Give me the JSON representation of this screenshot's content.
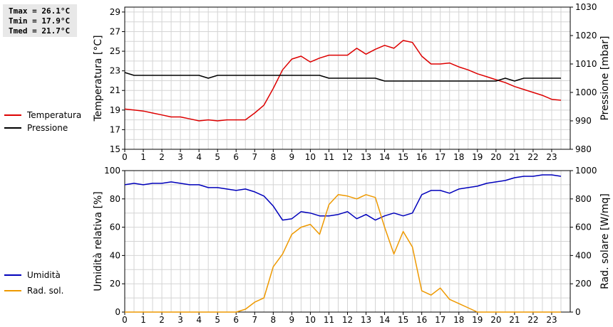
{
  "stats": {
    "tmax": "Tmax = 26.1°C",
    "tmin": "Tmin = 17.9°C",
    "tmed": "Tmed = 21.7°C"
  },
  "chart_data": [
    {
      "type": "line",
      "xlabel": "",
      "xlim": [
        0,
        24
      ],
      "xticks": [
        "0",
        "1",
        "2",
        "3",
        "4",
        "5",
        "6",
        "7",
        "8",
        "9",
        "10",
        "11",
        "12",
        "13",
        "14",
        "15",
        "16",
        "17",
        "18",
        "19",
        "20",
        "21",
        "22",
        "23"
      ],
      "ylabel": "Temperatura [°C]",
      "ylim": [
        15,
        29.5
      ],
      "yticks": [
        15,
        17,
        19,
        21,
        23,
        25,
        27,
        29
      ],
      "y2label": "Pressione [mbar]",
      "y2lim": [
        980,
        1030
      ],
      "y2ticks": [
        980,
        990,
        1000,
        1010,
        1020,
        1030
      ],
      "grid": true,
      "legend_position": "left",
      "x": [
        0,
        0.5,
        1,
        1.5,
        2,
        2.5,
        3,
        3.5,
        4,
        4.5,
        5,
        5.5,
        6,
        6.5,
        7,
        7.5,
        8,
        8.5,
        9,
        9.5,
        10,
        10.5,
        11,
        11.5,
        12,
        12.5,
        13,
        13.5,
        14,
        14.5,
        15,
        15.5,
        16,
        16.5,
        17,
        17.5,
        18,
        18.5,
        19,
        19.5,
        20,
        20.5,
        21,
        21.5,
        22,
        22.5,
        23,
        23.5
      ],
      "series": [
        {
          "name": "Temperatura",
          "color": "#dd0000",
          "axis": "left",
          "values": [
            19.1,
            19.0,
            18.9,
            18.7,
            18.5,
            18.3,
            18.3,
            18.1,
            17.9,
            18.0,
            17.9,
            18.0,
            18.0,
            18.0,
            18.7,
            19.5,
            21.2,
            23.1,
            24.2,
            24.5,
            23.9,
            24.3,
            24.6,
            24.6,
            24.6,
            25.3,
            24.7,
            25.2,
            25.6,
            25.3,
            26.1,
            25.9,
            24.5,
            23.7,
            23.7,
            23.8,
            23.4,
            23.1,
            22.7,
            22.4,
            22.1,
            21.8,
            21.4,
            21.1,
            20.8,
            20.5,
            20.1,
            20.0
          ]
        },
        {
          "name": "Pressione",
          "color": "#000000",
          "axis": "right",
          "values": [
            1007,
            1006,
            1006,
            1006,
            1006,
            1006,
            1006,
            1006,
            1006,
            1005,
            1006,
            1006,
            1006,
            1006,
            1006,
            1006,
            1006,
            1006,
            1006,
            1006,
            1006,
            1006,
            1005,
            1005,
            1005,
            1005,
            1005,
            1005,
            1004,
            1004,
            1004,
            1004,
            1004,
            1004,
            1004,
            1004,
            1004,
            1004,
            1004,
            1004,
            1004,
            1005,
            1004,
            1005,
            1005,
            1005,
            1005,
            1005
          ]
        }
      ]
    },
    {
      "type": "line",
      "xlabel": "",
      "xlim": [
        0,
        24
      ],
      "xticks": [
        "0",
        "1",
        "2",
        "3",
        "4",
        "5",
        "6",
        "7",
        "8",
        "9",
        "10",
        "11",
        "12",
        "13",
        "14",
        "15",
        "16",
        "17",
        "18",
        "19",
        "20",
        "21",
        "22",
        "23"
      ],
      "ylabel": "Umidità relativa [%]",
      "ylim": [
        0,
        100
      ],
      "yticks": [
        0,
        20,
        40,
        60,
        80,
        100
      ],
      "y2label": "Rad. solare [W/mq]",
      "y2lim": [
        0,
        1000
      ],
      "y2ticks": [
        0,
        200,
        400,
        600,
        800,
        1000
      ],
      "grid": true,
      "legend_position": "left",
      "x": [
        0,
        0.5,
        1,
        1.5,
        2,
        2.5,
        3,
        3.5,
        4,
        4.5,
        5,
        5.5,
        6,
        6.5,
        7,
        7.5,
        8,
        8.5,
        9,
        9.5,
        10,
        10.5,
        11,
        11.5,
        12,
        12.5,
        13,
        13.5,
        14,
        14.5,
        15,
        15.5,
        16,
        16.5,
        17,
        17.5,
        18,
        18.5,
        19,
        19.5,
        20,
        20.5,
        21,
        21.5,
        22,
        22.5,
        23,
        23.5
      ],
      "series": [
        {
          "name": "Umidità",
          "color": "#0000bb",
          "axis": "left",
          "values": [
            90,
            91,
            90,
            91,
            91,
            92,
            91,
            90,
            90,
            88,
            88,
            87,
            86,
            87,
            85,
            82,
            75,
            65,
            66,
            71,
            70,
            68,
            68,
            69,
            71,
            66,
            69,
            65,
            68,
            70,
            68,
            70,
            83,
            86,
            86,
            84,
            87,
            88,
            89,
            91,
            92,
            93,
            95,
            96,
            96,
            97,
            97,
            96
          ]
        },
        {
          "name": "Rad. sol.",
          "color": "#ee9900",
          "axis": "right",
          "values": [
            0,
            0,
            0,
            0,
            0,
            0,
            0,
            0,
            0,
            0,
            0,
            0,
            0,
            20,
            70,
            100,
            320,
            410,
            550,
            600,
            620,
            550,
            760,
            830,
            820,
            800,
            830,
            810,
            600,
            410,
            570,
            460,
            150,
            120,
            170,
            90,
            60,
            30,
            0,
            0,
            0,
            0,
            0,
            0,
            0,
            0,
            0,
            0
          ]
        }
      ]
    }
  ]
}
